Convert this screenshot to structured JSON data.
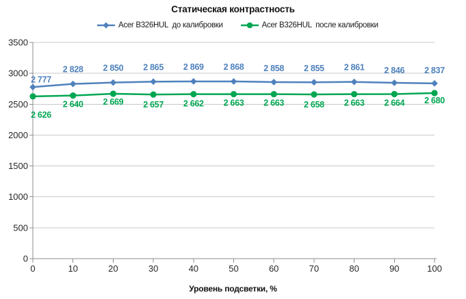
{
  "chart_data": {
    "type": "line",
    "title": "Статическая контрастность",
    "xlabel": "Уровень подсветки, %",
    "ylabel": "",
    "x": [
      0,
      10,
      20,
      30,
      40,
      50,
      60,
      70,
      80,
      90,
      100
    ],
    "xticklabels": [
      "0",
      "10",
      "20",
      "30",
      "40",
      "50",
      "60",
      "70",
      "80",
      "90",
      "100"
    ],
    "ylim": [
      0,
      3500
    ],
    "yticks": [
      0,
      500,
      1000,
      1500,
      2000,
      2500,
      3000,
      3500
    ],
    "grid": "horizontal",
    "legend_position": "top",
    "series": [
      {
        "name": "Acer B326HUL  до калибровки",
        "marker": "diamond",
        "color": "#4F81BD",
        "values": [
          2777,
          2828,
          2850,
          2865,
          2869,
          2868,
          2858,
          2855,
          2861,
          2846,
          2837
        ],
        "labels": [
          "2 777",
          "2 828",
          "2 850",
          "2 865",
          "2 869",
          "2 868",
          "2 858",
          "2 855",
          "2 861",
          "2 846",
          "2 837"
        ]
      },
      {
        "name": "Acer B326HUL  после калибровки",
        "marker": "circle",
        "color": "#00A651",
        "values": [
          2626,
          2640,
          2669,
          2657,
          2662,
          2663,
          2663,
          2658,
          2663,
          2664,
          2680
        ],
        "labels": [
          "2 626",
          "2 640",
          "2 669",
          "2 657",
          "2 662",
          "2 663",
          "2 663",
          "2 658",
          "2 663",
          "2 664",
          "2 680"
        ]
      }
    ],
    "axis_color": "#8C8C8C",
    "grid_color": "#C9C9C9",
    "tick_label_color": "#262626"
  }
}
